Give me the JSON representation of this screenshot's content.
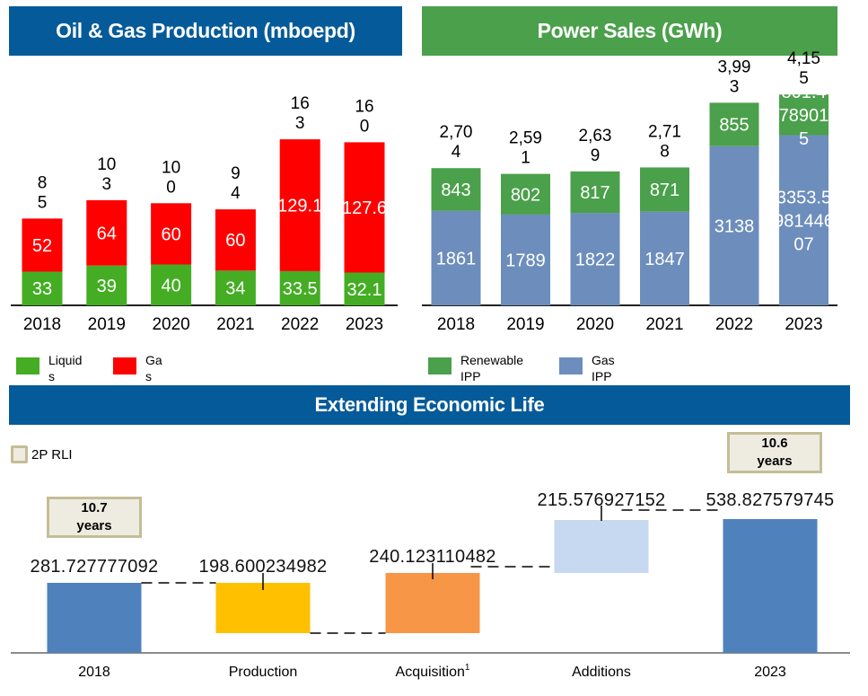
{
  "banners": {
    "oil_gas": "Oil & Gas Production (mboepd)",
    "power": "Power Sales (GWh)",
    "economic_life": "Extending Economic Life"
  },
  "legends": {
    "oil_gas": [
      {
        "label": "Liquids",
        "color": "#44ad24"
      },
      {
        "label": "Gas",
        "color": "#ff0000"
      }
    ],
    "power": [
      {
        "label": "Renewable IPP",
        "color": "#4ba04b"
      },
      {
        "label": "Gas IPP",
        "color": "#6d8ebc"
      }
    ],
    "rli": {
      "label": "2P RLI"
    }
  },
  "rli_boxes": {
    "y2018": {
      "value": "10.7",
      "unit": "years"
    },
    "y2023": {
      "value": "10.6",
      "unit": "years"
    }
  },
  "chart_data": [
    {
      "type": "bar",
      "stacked": true,
      "title": "Oil & Gas Production (mboepd)",
      "categories": [
        "2018",
        "2019",
        "2020",
        "2021",
        "2022",
        "2023"
      ],
      "series": [
        {
          "name": "Liquids",
          "color": "#44ad24",
          "values": [
            33,
            39,
            40,
            34,
            33.5,
            32.1
          ],
          "labels": [
            "33",
            "39",
            "40",
            "34",
            "33.5",
            "32.1"
          ]
        },
        {
          "name": "Gas",
          "color": "#ff0000",
          "values": [
            52,
            64,
            60,
            60,
            129.1,
            127.6
          ],
          "labels": [
            "52",
            "64",
            "60",
            "60",
            "129.1",
            "127.6"
          ]
        }
      ],
      "totals": [
        85,
        103,
        100,
        94,
        163,
        160
      ],
      "total_labels": [
        [
          "8",
          "5"
        ],
        [
          "10",
          "3"
        ],
        [
          "10",
          "0"
        ],
        [
          "9",
          "4"
        ],
        [
          "16",
          "3"
        ],
        [
          "16",
          "0"
        ]
      ],
      "xlabel": "",
      "ylabel": "",
      "ylim": [
        0,
        180
      ],
      "grid": false,
      "legend": "bottom-left"
    },
    {
      "type": "bar",
      "stacked": true,
      "title": "Power Sales (GWh)",
      "categories": [
        "2018",
        "2019",
        "2020",
        "2021",
        "2022",
        "2023"
      ],
      "series": [
        {
          "name": "Gas IPP",
          "color": "#6d8ebc",
          "values": [
            1861,
            1789,
            1822,
            1847,
            3138,
            3353.5
          ],
          "labels": [
            [
              "1861"
            ],
            [
              "1789"
            ],
            [
              "1822"
            ],
            [
              "1847"
            ],
            [
              "3138"
            ],
            [
              "3353.5",
              "981446",
              "07"
            ]
          ]
        },
        {
          "name": "Renewable IPP",
          "color": "#4ba04b",
          "values": [
            843,
            802,
            817,
            871,
            855,
            801.5
          ],
          "labels": [
            [
              "843"
            ],
            [
              "802"
            ],
            [
              "817"
            ],
            [
              "871"
            ],
            [
              "855"
            ],
            [
              "801.4",
              "78901",
              "5"
            ]
          ]
        }
      ],
      "totals": [
        2704,
        2591,
        2639,
        2718,
        3993,
        4155
      ],
      "total_labels": [
        [
          "2,70",
          "4"
        ],
        [
          "2,59",
          "1"
        ],
        [
          "2,63",
          "9"
        ],
        [
          "2,71",
          "8"
        ],
        [
          "3,99",
          "3"
        ],
        [
          "4,15",
          "5"
        ]
      ],
      "xlabel": "",
      "ylabel": "",
      "ylim": [
        0,
        4500
      ],
      "grid": false,
      "legend": "bottom-left"
    },
    {
      "type": "bar",
      "subtype": "waterfall",
      "title": "Extending Economic Life",
      "categories": [
        "2018",
        "Production",
        "Acquisition",
        "Additions",
        "2023"
      ],
      "category_superscripts": [
        "",
        "",
        "1",
        "",
        ""
      ],
      "kinds": [
        "total",
        "decrease",
        "increase",
        "increase",
        "total"
      ],
      "values": [
        281.727777092,
        -198.600234982,
        240.123110482,
        215.576927152,
        538.827579745
      ],
      "labels": [
        "281.727777092",
        "198.600234982",
        "240.123110482",
        "215.576927152",
        "538.827579745"
      ],
      "colors": [
        "#4f81bd",
        "#ffc000",
        "#f79646",
        "#c6d9f1",
        "#4f81bd"
      ],
      "ylim": [
        0,
        600
      ],
      "legend": "top-left",
      "annotations": [
        {
          "category": "2018",
          "text": "10.7 years"
        },
        {
          "category": "2023",
          "text": "10.6 years"
        }
      ]
    }
  ]
}
